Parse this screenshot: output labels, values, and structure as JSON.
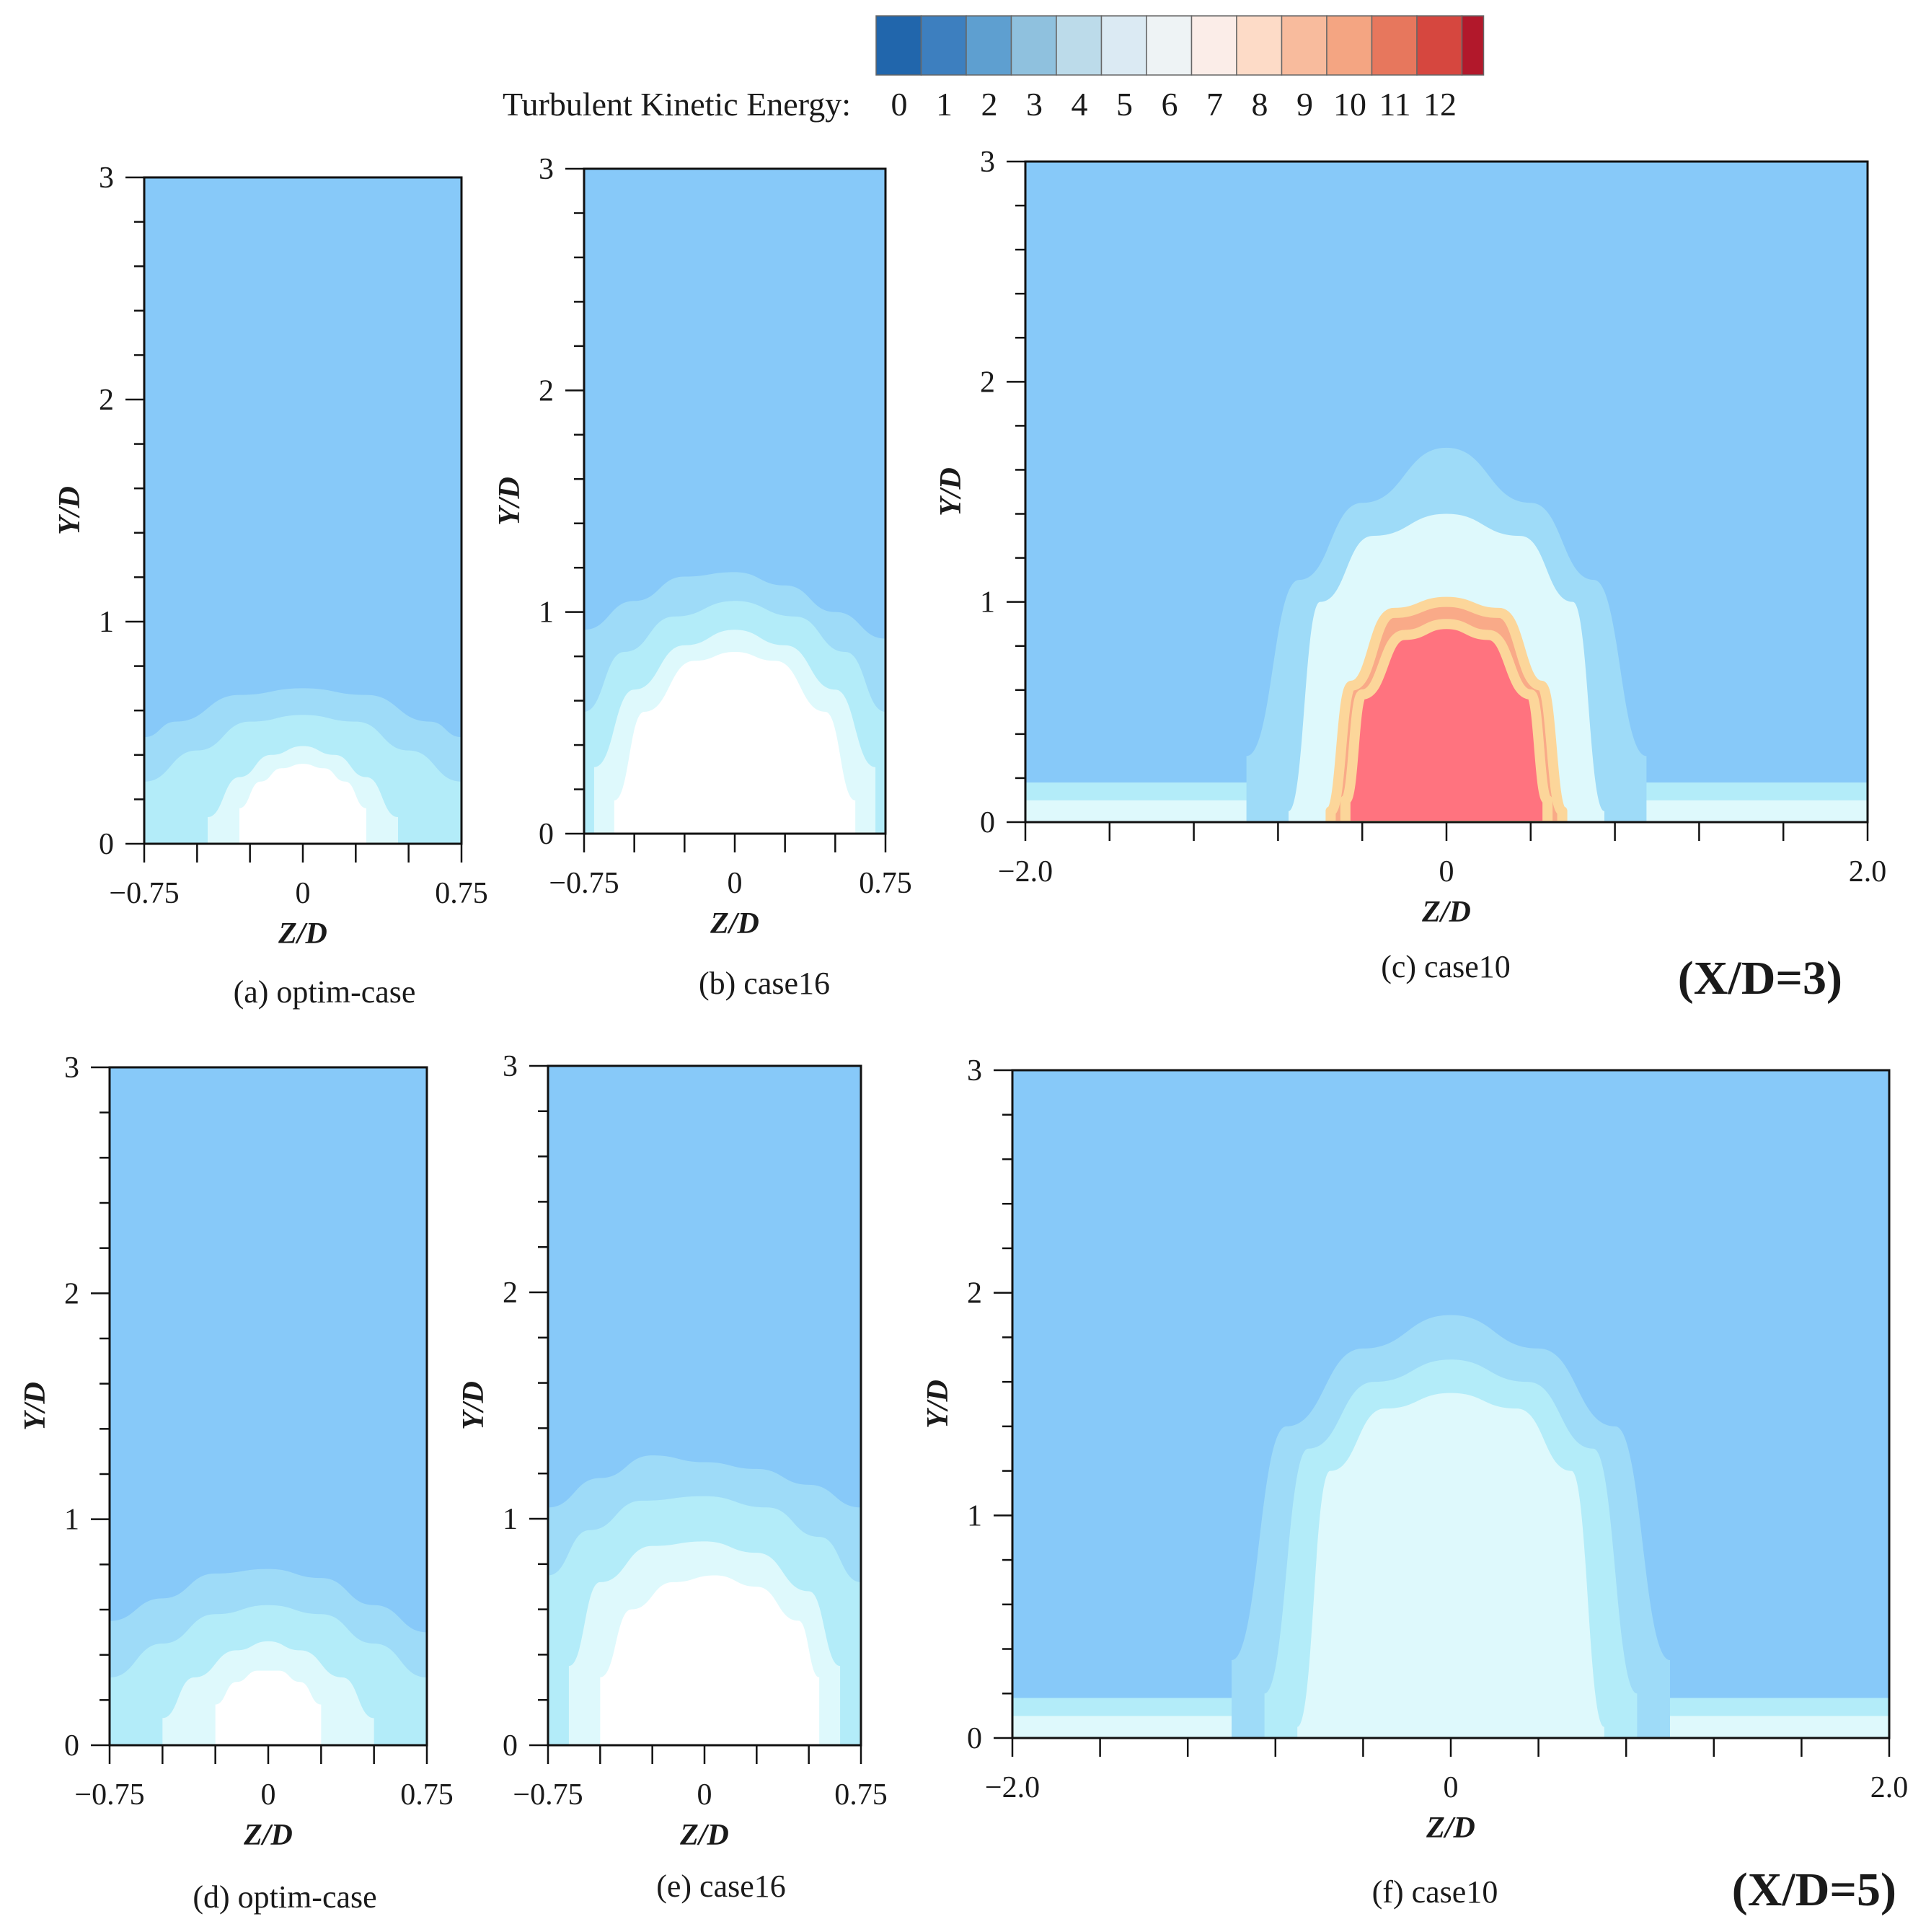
{
  "colorbar": {
    "label": "Turbulent Kinetic Energy:",
    "levels": [
      "0",
      "1",
      "2",
      "3",
      "4",
      "5",
      "6",
      "7",
      "8",
      "9",
      "10",
      "11",
      "12"
    ],
    "colors": [
      "#2166ac",
      "#3d7fbf",
      "#5e9fd0",
      "#8fc1de",
      "#bcdbea",
      "#dbeaf3",
      "#eef3f5",
      "#fbede8",
      "#fddbc7",
      "#f8bb9d",
      "#f4a582",
      "#e7775d",
      "#d6473f",
      "#b2182b"
    ]
  },
  "palette": {
    "background": "#87c9f9",
    "bands": [
      "#87c9f9",
      "#9edbf8",
      "#b3ecf9",
      "#c8f6fb",
      "#def9fc",
      "#eefdfe",
      "#ffffff"
    ],
    "hot_rings": [
      "#fdf2c6",
      "#fcd69a",
      "#f9aa88",
      "#f78a83",
      "#ff737f"
    ]
  },
  "chart_data": [
    {
      "type": "heatmap",
      "id": "a",
      "caption": "(a) optim-case",
      "section": "X/D=3",
      "quantity": "Turbulent Kinetic Energy",
      "xlabel": "Z/D",
      "ylabel": "Y/D",
      "xlim": [
        -0.75,
        0.75
      ],
      "ylim": [
        0,
        3
      ],
      "xticks": [
        "−0.75",
        "0",
        "0.75"
      ],
      "xtick_values": [
        -0.75,
        0,
        0.75
      ],
      "yticks": [
        "0",
        "1",
        "2",
        "3"
      ],
      "ytick_values": [
        0,
        1,
        2,
        3
      ],
      "contours": [
        {
          "level": 3,
          "z": [
            -0.75,
            -0.6,
            -0.3,
            0,
            0.3,
            0.6,
            0.75
          ],
          "y": [
            0.48,
            0.55,
            0.67,
            0.7,
            0.67,
            0.55,
            0.48
          ]
        },
        {
          "level": 4,
          "z": [
            -0.75,
            -0.5,
            -0.25,
            0,
            0.25,
            0.5,
            0.75
          ],
          "y": [
            0.28,
            0.42,
            0.55,
            0.58,
            0.55,
            0.42,
            0.28
          ]
        },
        {
          "level": 5,
          "z": [
            -0.45,
            -0.3,
            -0.15,
            0,
            0.15,
            0.3,
            0.45
          ],
          "y": [
            0.12,
            0.3,
            0.4,
            0.44,
            0.4,
            0.3,
            0.12
          ]
        },
        {
          "level": 6,
          "z": [
            -0.3,
            -0.2,
            -0.1,
            0,
            0.1,
            0.2,
            0.3
          ],
          "y": [
            0.16,
            0.28,
            0.34,
            0.36,
            0.34,
            0.28,
            0.16
          ]
        }
      ]
    },
    {
      "type": "heatmap",
      "id": "b",
      "caption": "(b) case16",
      "section": "X/D=3",
      "quantity": "Turbulent Kinetic Energy",
      "xlabel": "Z/D",
      "ylabel": "Y/D",
      "xlim": [
        -0.75,
        0.75
      ],
      "ylim": [
        0,
        3
      ],
      "xticks": [
        "−0.75",
        "0",
        "0.75"
      ],
      "xtick_values": [
        -0.75,
        0,
        0.75
      ],
      "yticks": [
        "0",
        "1",
        "2",
        "3"
      ],
      "ytick_values": [
        0,
        1,
        2,
        3
      ],
      "contours": [
        {
          "level": 3,
          "z": [
            -0.75,
            -0.5,
            -0.25,
            0,
            0.25,
            0.5,
            0.75
          ],
          "y": [
            0.92,
            1.05,
            1.16,
            1.18,
            1.12,
            1.0,
            0.88
          ]
        },
        {
          "level": 4,
          "z": [
            -0.75,
            -0.55,
            -0.3,
            0,
            0.3,
            0.55,
            0.75
          ],
          "y": [
            0.55,
            0.82,
            0.98,
            1.05,
            0.98,
            0.82,
            0.55
          ]
        },
        {
          "level": 5,
          "z": [
            -0.7,
            -0.5,
            -0.25,
            0,
            0.25,
            0.5,
            0.7
          ],
          "y": [
            0.3,
            0.65,
            0.85,
            0.92,
            0.85,
            0.65,
            0.3
          ]
        },
        {
          "level": 6,
          "z": [
            -0.6,
            -0.45,
            -0.2,
            0,
            0.2,
            0.45,
            0.6
          ],
          "y": [
            0.15,
            0.55,
            0.78,
            0.82,
            0.78,
            0.55,
            0.15
          ]
        }
      ]
    },
    {
      "type": "heatmap",
      "id": "c",
      "caption": "(c) case10",
      "section": "X/D=3",
      "quantity": "Turbulent Kinetic Energy",
      "xlabel": "Z/D",
      "ylabel": "Y/D",
      "xlim": [
        -2.0,
        2.0
      ],
      "ylim": [
        0,
        3
      ],
      "xticks": [
        "−2.0",
        "0",
        "2.0"
      ],
      "xtick_values": [
        -2.0,
        0,
        2.0
      ],
      "yticks": [
        "0",
        "1",
        "2",
        "3"
      ],
      "ytick_values": [
        0,
        1,
        2,
        3
      ],
      "contours": [
        {
          "level": 3,
          "z": [
            -0.95,
            -0.7,
            -0.4,
            0,
            0.4,
            0.7,
            0.95
          ],
          "y": [
            0.3,
            1.1,
            1.45,
            1.7,
            1.45,
            1.1,
            0.3
          ]
        },
        {
          "level": 5,
          "z": [
            -0.75,
            -0.6,
            -0.35,
            0,
            0.35,
            0.6,
            0.75
          ],
          "y": [
            0.05,
            1.0,
            1.3,
            1.4,
            1.3,
            1.0,
            0.05
          ]
        },
        {
          "level": 8,
          "z": [
            -0.55,
            -0.45,
            -0.25,
            0,
            0.25,
            0.45,
            0.55
          ],
          "y": [
            0.05,
            0.62,
            0.95,
            1.0,
            0.95,
            0.62,
            0.05
          ]
        },
        {
          "level": 10,
          "z": [
            -0.48,
            -0.4,
            -0.2,
            0,
            0.2,
            0.4,
            0.48
          ],
          "y": [
            0.1,
            0.58,
            0.85,
            0.9,
            0.85,
            0.58,
            0.1
          ]
        }
      ]
    },
    {
      "type": "heatmap",
      "id": "d",
      "caption": "(d) optim-case",
      "section": "X/D=5",
      "quantity": "Turbulent Kinetic Energy",
      "xlabel": "Z/D",
      "ylabel": "Y/D",
      "xlim": [
        -0.75,
        0.75
      ],
      "ylim": [
        0,
        3
      ],
      "xticks": [
        "−0.75",
        "0",
        "0.75"
      ],
      "xtick_values": [
        -0.75,
        0,
        0.75
      ],
      "yticks": [
        "0",
        "1",
        "2",
        "3"
      ],
      "ytick_values": [
        0,
        1,
        2,
        3
      ],
      "contours": [
        {
          "level": 3,
          "z": [
            -0.75,
            -0.5,
            -0.25,
            0,
            0.25,
            0.5,
            0.75
          ],
          "y": [
            0.55,
            0.65,
            0.76,
            0.78,
            0.74,
            0.62,
            0.5
          ]
        },
        {
          "level": 4,
          "z": [
            -0.75,
            -0.5,
            -0.25,
            0,
            0.25,
            0.5,
            0.75
          ],
          "y": [
            0.3,
            0.45,
            0.58,
            0.62,
            0.58,
            0.45,
            0.3
          ]
        },
        {
          "level": 5,
          "z": [
            -0.5,
            -0.35,
            -0.15,
            0,
            0.15,
            0.35,
            0.5
          ],
          "y": [
            0.12,
            0.3,
            0.42,
            0.46,
            0.42,
            0.3,
            0.12
          ]
        },
        {
          "level": 6,
          "z": [
            -0.25,
            -0.15,
            -0.05,
            0.05,
            0.15,
            0.25
          ],
          "y": [
            0.18,
            0.28,
            0.33,
            0.33,
            0.28,
            0.18
          ]
        }
      ]
    },
    {
      "type": "heatmap",
      "id": "e",
      "caption": "(e) case16",
      "section": "X/D=5",
      "quantity": "Turbulent Kinetic Energy",
      "xlabel": "Z/D",
      "ylabel": "Y/D",
      "xlim": [
        -0.75,
        0.75
      ],
      "ylim": [
        0,
        3
      ],
      "xticks": [
        "−0.75",
        "0",
        "0.75"
      ],
      "xtick_values": [
        -0.75,
        0,
        0.75
      ],
      "yticks": [
        "0",
        "1",
        "2",
        "3"
      ],
      "ytick_values": [
        0,
        1,
        2,
        3
      ],
      "contours": [
        {
          "level": 3,
          "z": [
            -0.75,
            -0.5,
            -0.25,
            0,
            0.25,
            0.5,
            0.75
          ],
          "y": [
            1.05,
            1.18,
            1.28,
            1.25,
            1.22,
            1.15,
            1.05
          ]
        },
        {
          "level": 4,
          "z": [
            -0.75,
            -0.55,
            -0.3,
            0,
            0.3,
            0.55,
            0.75
          ],
          "y": [
            0.75,
            0.95,
            1.08,
            1.1,
            1.05,
            0.92,
            0.72
          ]
        },
        {
          "level": 5,
          "z": [
            -0.65,
            -0.5,
            -0.25,
            0,
            0.25,
            0.5,
            0.65
          ],
          "y": [
            0.35,
            0.72,
            0.88,
            0.9,
            0.85,
            0.68,
            0.35
          ]
        },
        {
          "level": 6,
          "z": [
            -0.5,
            -0.35,
            -0.15,
            0.05,
            0.25,
            0.45,
            0.55
          ],
          "y": [
            0.3,
            0.6,
            0.72,
            0.75,
            0.7,
            0.55,
            0.3
          ]
        }
      ]
    },
    {
      "type": "heatmap",
      "id": "f",
      "caption": "(f) case10",
      "section": "X/D=5",
      "quantity": "Turbulent Kinetic Energy",
      "xlabel": "Z/D",
      "ylabel": "Y/D",
      "xlim": [
        -2.0,
        2.0
      ],
      "ylim": [
        0,
        3
      ],
      "xticks": [
        "−2.0",
        "0",
        "2.0"
      ],
      "xtick_values": [
        -2.0,
        0,
        2.0
      ],
      "yticks": [
        "0",
        "1",
        "2",
        "3"
      ],
      "ytick_values": [
        0,
        1,
        2,
        3
      ],
      "contours": [
        {
          "level": 3,
          "z": [
            -1.0,
            -0.75,
            -0.4,
            0,
            0.4,
            0.75,
            1.0
          ],
          "y": [
            0.35,
            1.4,
            1.75,
            1.9,
            1.75,
            1.4,
            0.35
          ]
        },
        {
          "level": 4,
          "z": [
            -0.85,
            -0.65,
            -0.35,
            0,
            0.35,
            0.65,
            0.85
          ],
          "y": [
            0.2,
            1.3,
            1.6,
            1.7,
            1.6,
            1.3,
            0.2
          ]
        },
        {
          "level": 5,
          "z": [
            -0.7,
            -0.55,
            -0.3,
            0,
            0.3,
            0.55,
            0.7
          ],
          "y": [
            0.05,
            1.2,
            1.48,
            1.55,
            1.48,
            1.2,
            0.05
          ]
        }
      ]
    }
  ],
  "section_labels": [
    "(X/D=3)",
    "(X/D=5)"
  ]
}
